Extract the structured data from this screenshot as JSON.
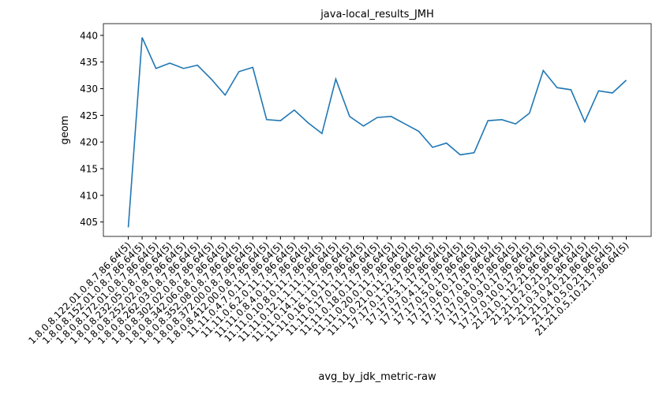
{
  "chart_data": {
    "type": "line",
    "title": "java-local_results_JMH",
    "xlabel": "avg_by_jdk_metric-raw",
    "ylabel": "geom",
    "categories": [
      "1.8.0.8.122.01.0.8.7.86.64(5)",
      "1.8.0.8.152.01.0.8.7.86.64(5)",
      "1.8.0.8.172.01.0.8.7.86.64(5)",
      "1.8.0.8.232.05.0.8.7.86.64(5)",
      "1.8.0.8.252.02.0.8.7.86.64(5)",
      "1.8.0.8.262.03.0.8.7.86.64(5)",
      "1.8.0.8.302.02.0.8.7.86.64(5)",
      "1.8.0.8.342.06.0.8.7.86.64(5)",
      "1.8.0.8.352.08.0.8.7.86.64(5)",
      "1.8.0.8.372.00.0.8.7.86.64(5)",
      "1.8.0.8.412.00.0.8.7.86.64(5)",
      "11.11.0.4.7.0.11.7.86.64(5)",
      "11.11.0.6.2.0.11.7.86.64(5)",
      "11.11.0.8.4.0.11.7.86.64(5)",
      "11.11.0.10.8.0.11.7.86.64(5)",
      "11.11.0.12.1.1.11.7.86.64(5)",
      "11.11.0.14.1.1.11.7.86.64(5)",
      "11.11.0.16.1.0.11.7.86.64(5)",
      "11.11.0.17.0.11.7.86.64(5)",
      "11.11.0.18.0.11.7.86.64(5)",
      "11.11.0.20.0.11.7.86.64(5)",
      "11.11.0.21.0.11.7.86.64(5)",
      "17.17.0.1.12.17.86.64(5)",
      "17.17.0.3.1.17.86.64(5)",
      "17.17.0.4.1.17.86.64(5)",
      "17.17.0.5.0.17.86.64(5)",
      "17.17.0.6.0.17.86.64(5)",
      "17.17.0.7.0.17.86.64(5)",
      "17.17.0.8.0.17.86.64(5)",
      "17.17.0.9.0.17.86.64(5)",
      "17.17.0.10.0.17.86.64(5)",
      "21.21.0.1.12.21.86.64(5)",
      "21.21.0.2.0.21.86.64(5)",
      "21.21.0.3.0.21.86.64(5)",
      "21.21.0.4.0.21.86.64(5)",
      "21.21.0.5.0.21.86.64(5)",
      "21.21.0.5.10.21.7.86.64(5)"
    ],
    "values": [
      404,
      439.6,
      433.8,
      434.8,
      433.8,
      434.4,
      431.8,
      428.8,
      433.2,
      434,
      424.2,
      424,
      426,
      423.6,
      421.6,
      431.8,
      424.8,
      423,
      424.6,
      424.8,
      423.4,
      422,
      419,
      419.8,
      417.6,
      418,
      424,
      424.2,
      423.4,
      425.4,
      433.4,
      430.2,
      429.8,
      423.8,
      429.6,
      429.2,
      431.6
    ],
    "color": "#1f77b4",
    "ylim": [
      402.3,
      442.2
    ],
    "yticks": [
      405,
      410,
      415,
      420,
      425,
      430,
      435,
      440
    ]
  }
}
